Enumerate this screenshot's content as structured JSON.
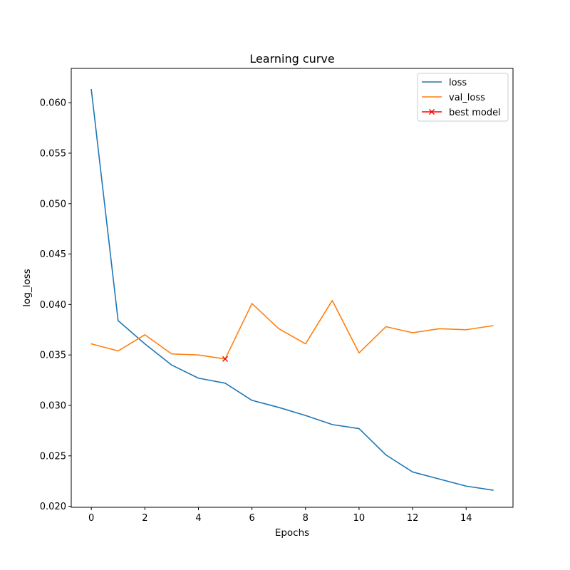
{
  "chart_data": {
    "type": "line",
    "title": "Learning curve",
    "xlabel": "Epochs",
    "ylabel": "log_loss",
    "xlim": [
      -0.75,
      15.75
    ],
    "ylim": [
      0.0199,
      0.0634
    ],
    "x_ticks": [
      0,
      2,
      4,
      6,
      8,
      10,
      12,
      14
    ],
    "x_tick_labels": [
      "0",
      "2",
      "4",
      "6",
      "8",
      "10",
      "12",
      "14"
    ],
    "y_ticks": [
      0.02,
      0.025,
      0.03,
      0.035,
      0.04,
      0.045,
      0.05,
      0.055,
      0.06
    ],
    "y_tick_labels": [
      "0.020",
      "0.025",
      "0.030",
      "0.035",
      "0.040",
      "0.045",
      "0.050",
      "0.055",
      "0.060"
    ],
    "x": [
      0,
      1,
      2,
      3,
      4,
      5,
      6,
      7,
      8,
      9,
      10,
      11,
      12,
      13,
      14,
      15
    ],
    "series": [
      {
        "name": "loss",
        "color": "#1f77b4",
        "values": [
          0.0613,
          0.0384,
          0.0361,
          0.034,
          0.0327,
          0.0322,
          0.0305,
          0.0298,
          0.029,
          0.0281,
          0.0277,
          0.0251,
          0.0234,
          0.0227,
          0.022,
          0.0216
        ]
      },
      {
        "name": "val_loss",
        "color": "#ff7f0e",
        "values": [
          0.0361,
          0.0354,
          0.037,
          0.0351,
          0.035,
          0.0346,
          0.0401,
          0.0376,
          0.0361,
          0.0404,
          0.0352,
          0.0378,
          0.0372,
          0.0376,
          0.0375,
          0.0379
        ]
      }
    ],
    "best_model": {
      "name": "best model",
      "x": 5,
      "y": 0.0346,
      "color": "#ff0000",
      "marker": "x"
    },
    "legend_position": "top-right",
    "grid": false
  }
}
